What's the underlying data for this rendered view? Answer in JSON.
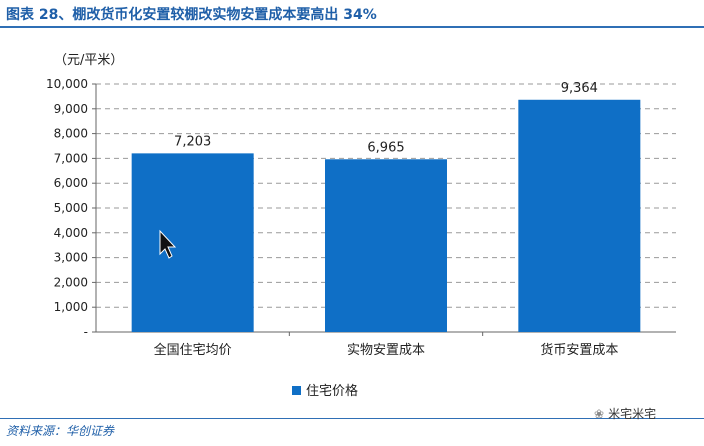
{
  "page_title": "图表 28、棚改货币化安置较棚改实物安置成本要高出 34%",
  "source": "资料来源：华创证券",
  "watermark": "米宅米宅",
  "chart_data": {
    "type": "bar",
    "unit_label": "（元/平米）",
    "categories": [
      "全国住宅均价",
      "实物安置成本",
      "货币安置成本"
    ],
    "series": [
      {
        "name": "住宅价格",
        "values": [
          7203,
          6965,
          9364
        ],
        "labels": [
          "7,203",
          "6,965",
          "9,364"
        ]
      }
    ],
    "ylim": [
      0,
      10000
    ],
    "yticks": [
      0,
      1000,
      2000,
      3000,
      4000,
      5000,
      6000,
      7000,
      8000,
      9000,
      10000
    ],
    "ytick_labels": [
      "-",
      "1,000",
      "2,000",
      "3,000",
      "4,000",
      "5,000",
      "6,000",
      "7,000",
      "8,000",
      "9,000",
      "10,000"
    ],
    "grid": true,
    "legend_position": "bottom",
    "bar_color": "#0f6fc6"
  }
}
